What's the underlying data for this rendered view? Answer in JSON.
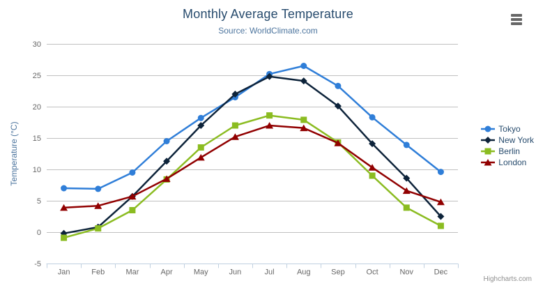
{
  "credits": "Highcharts.com",
  "icons": {
    "context_menu": "hamburger-icon"
  },
  "chart_data": {
    "type": "line",
    "title": "Monthly Average Temperature",
    "subtitle": "Source: WorldClimate.com",
    "categories": [
      "Jan",
      "Feb",
      "Mar",
      "Apr",
      "May",
      "Jun",
      "Jul",
      "Aug",
      "Sep",
      "Oct",
      "Nov",
      "Dec"
    ],
    "series": [
      {
        "name": "Tokyo",
        "color": "#2f7ed8",
        "marker": "circle",
        "values": [
          7.0,
          6.9,
          9.5,
          14.5,
          18.2,
          21.5,
          25.2,
          26.5,
          23.3,
          18.3,
          13.9,
          9.6
        ]
      },
      {
        "name": "New York",
        "color": "#0d233a",
        "marker": "diamond",
        "values": [
          -0.2,
          0.8,
          5.7,
          11.3,
          17.0,
          22.0,
          24.8,
          24.1,
          20.1,
          14.1,
          8.6,
          2.5
        ]
      },
      {
        "name": "Berlin",
        "color": "#8bbc21",
        "marker": "square",
        "values": [
          -0.9,
          0.6,
          3.5,
          8.4,
          13.5,
          17.0,
          18.6,
          17.9,
          14.3,
          9.0,
          3.9,
          1.0
        ]
      },
      {
        "name": "London",
        "color": "#910000",
        "marker": "triangle",
        "values": [
          3.9,
          4.2,
          5.7,
          8.5,
          11.9,
          15.2,
          17.0,
          16.6,
          14.2,
          10.3,
          6.6,
          4.8
        ]
      }
    ],
    "xlabel": "",
    "ylabel": "Temperature (°C)",
    "ylim": [
      -5,
      30
    ],
    "ytick_interval": 5,
    "grid": true,
    "legend_position": "right",
    "colors": {
      "grid": "#c0c0c0",
      "axis_line": "#c0d0e0",
      "tick": "#c0d0e0",
      "axis_label": "#666666",
      "axis_title": "#4d759e",
      "title": "#274b6d",
      "subtitle": "#4d759e",
      "legend_text": "#274b6d",
      "credits": "#909090",
      "menu_icon": "#666666"
    }
  }
}
